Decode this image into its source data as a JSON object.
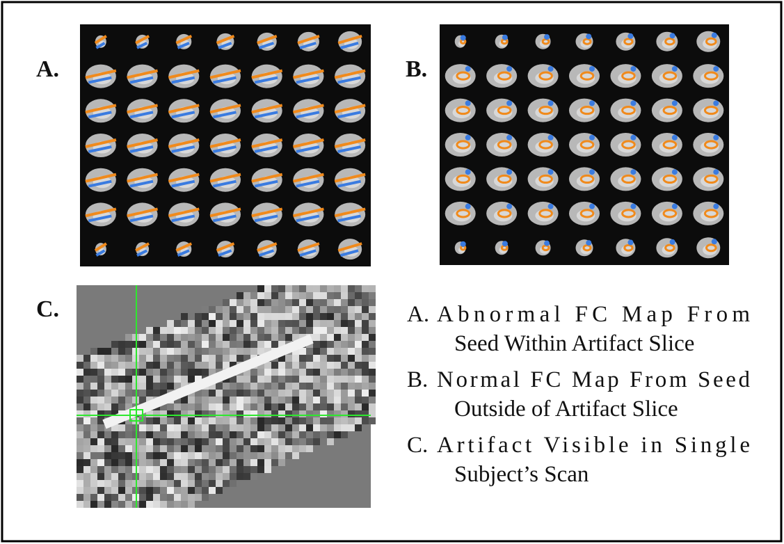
{
  "panels": [
    {
      "label": "A."
    },
    {
      "label": "B."
    },
    {
      "label": "C."
    }
  ],
  "legend": [
    {
      "marker": "A.",
      "lines": [
        "Abnormal FC Map From",
        "Seed Within Artifact Slice"
      ]
    },
    {
      "marker": "B.",
      "lines": [
        "Normal FC Map From Seed",
        "Outside of Artifact Slice"
      ]
    },
    {
      "marker": "C.",
      "lines": [
        "Artifact Visible in Single",
        "Subject’s Scan"
      ]
    }
  ]
}
